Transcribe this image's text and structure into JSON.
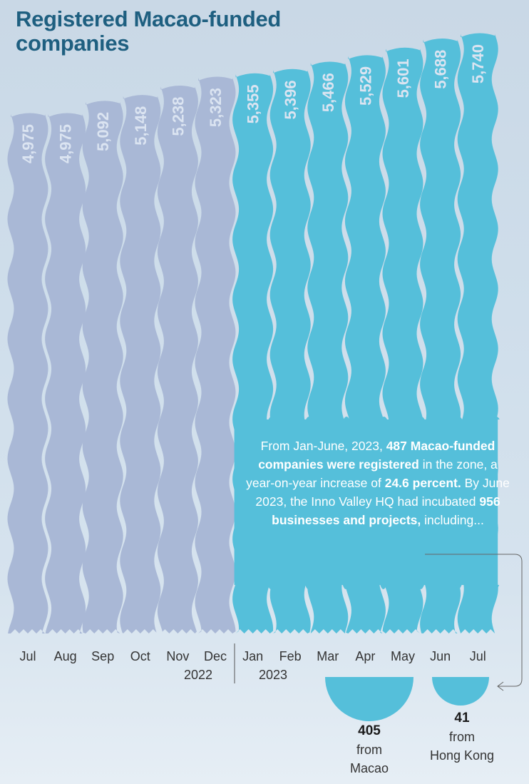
{
  "title": "Registered Macao-funded companies",
  "chart_data": {
    "type": "bar",
    "title": "Registered Macao-funded companies",
    "categories": [
      "Jul",
      "Aug",
      "Sep",
      "Oct",
      "Nov",
      "Dec",
      "Jan",
      "Feb",
      "Mar",
      "Apr",
      "May",
      "Jun",
      "Jul"
    ],
    "year_labels": [
      "2022",
      "2023"
    ],
    "series": [
      {
        "values": [
          4975,
          4975,
          5092,
          5148,
          5238,
          5323,
          5355,
          5396,
          5466,
          5529,
          5601,
          5688,
          5740
        ]
      }
    ],
    "value_labels": [
      "4,975",
      "4,975",
      "5,092",
      "5,148",
      "5,238",
      "5,323",
      "5,355",
      "5,396",
      "5,466",
      "5,529",
      "5,601",
      "5,688",
      "5,740"
    ],
    "year_of_bar": [
      "2022",
      "2022",
      "2022",
      "2022",
      "2022",
      "2022",
      "2023",
      "2023",
      "2023",
      "2023",
      "2023",
      "2023",
      "2023"
    ],
    "colors": {
      "2022": "#a9b8d6",
      "2023": "#55bfda",
      "title": "#1e5f80",
      "bar_label": "#dbe4f1"
    },
    "xlabel": "",
    "ylabel": ""
  },
  "callout": {
    "t1": "From Jan-June, 2023, ",
    "b1": "487 Macao-funded companies were registered",
    "t2": " in the zone, a year-on-year increase of ",
    "b2": "24.6 percent.",
    "t3": " By June 2023, the Inno Valley HQ had incubated ",
    "b3": "956 businesses and projects,",
    "t4": " including..."
  },
  "breakdown": [
    {
      "value": "405",
      "label_line1": "from",
      "label_line2": "Macao"
    },
    {
      "value": "41",
      "label_line1": "from",
      "label_line2": "Hong Kong"
    }
  ]
}
